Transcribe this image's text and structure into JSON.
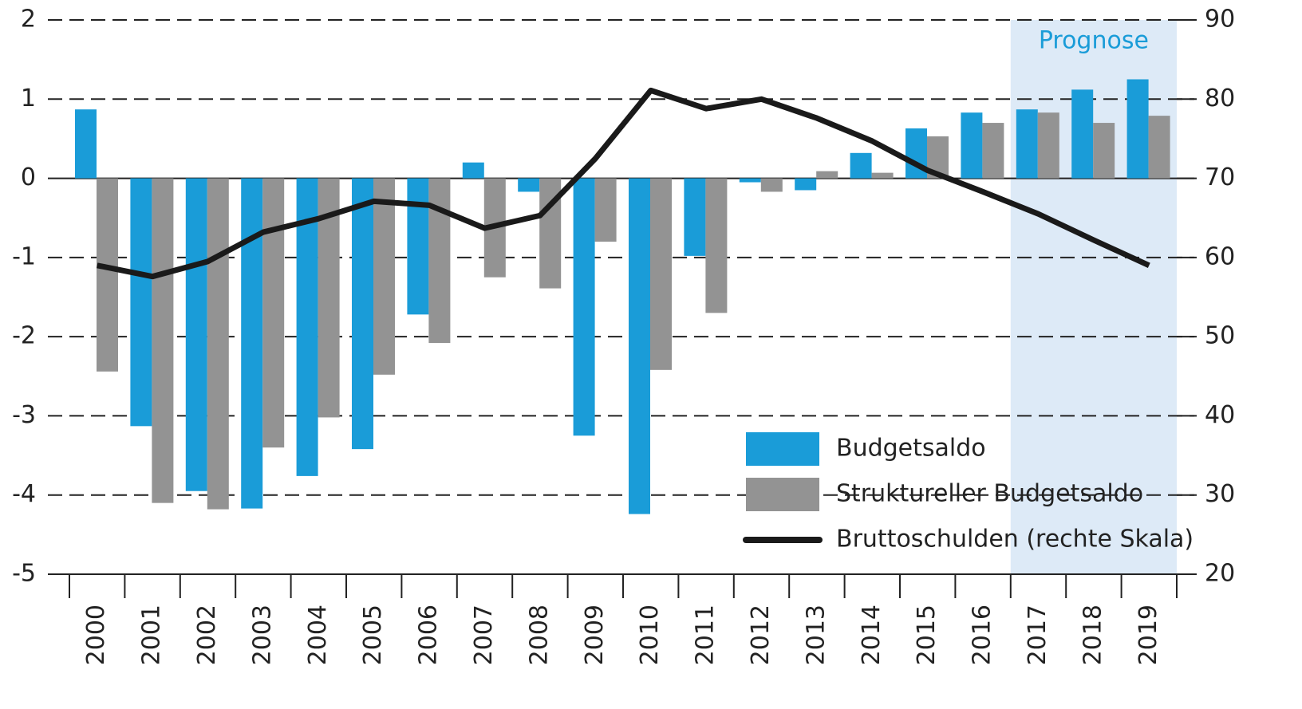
{
  "chart_data": {
    "type": "bar",
    "categories": [
      "2000",
      "2001",
      "2002",
      "2003",
      "2004",
      "2005",
      "2006",
      "2007",
      "2008",
      "2009",
      "2010",
      "2011",
      "2012",
      "2013",
      "2014",
      "2015",
      "2016",
      "2017",
      "2018",
      "2019"
    ],
    "series": [
      {
        "name": "Budgetsaldo",
        "color": "#1a9cd8",
        "values": [
          0.87,
          -3.13,
          -3.95,
          -4.17,
          -3.76,
          -3.42,
          -1.72,
          0.2,
          -0.17,
          -3.25,
          -4.24,
          -0.98,
          -0.05,
          -0.15,
          0.32,
          0.63,
          0.83,
          0.87,
          1.12,
          1.25
        ]
      },
      {
        "name": "Struktureller Budgetsaldo",
        "color": "#939393",
        "values": [
          -2.44,
          -4.1,
          -4.18,
          -3.4,
          -3.02,
          -2.48,
          -2.08,
          -1.25,
          -1.39,
          -0.8,
          -2.42,
          -1.7,
          -0.17,
          0.09,
          0.07,
          0.53,
          0.7,
          0.83,
          0.7,
          0.79
        ]
      },
      {
        "name": "Bruttoschulden (rechte Skala)",
        "color": "#1a1a1a",
        "type": "line",
        "axis": "y2",
        "values": [
          59.0,
          57.6,
          59.5,
          63.2,
          64.9,
          67.1,
          66.6,
          63.7,
          65.3,
          72.5,
          81.1,
          78.8,
          80.0,
          77.6,
          74.7,
          71.0,
          68.3,
          65.5,
          62.2,
          59.0
        ]
      }
    ],
    "ylim": [
      -5,
      2
    ],
    "yticks": [
      -5,
      -4,
      -3,
      -2,
      -1,
      0,
      1,
      2
    ],
    "y2lim": [
      20,
      90
    ],
    "y2ticks": [
      20,
      30,
      40,
      50,
      60,
      70,
      80,
      90
    ],
    "grid": true,
    "legend": "lower right",
    "shaded_region": {
      "label": "Prognose",
      "from": "2017",
      "to": "2019",
      "color": "#ddeaf7"
    }
  }
}
